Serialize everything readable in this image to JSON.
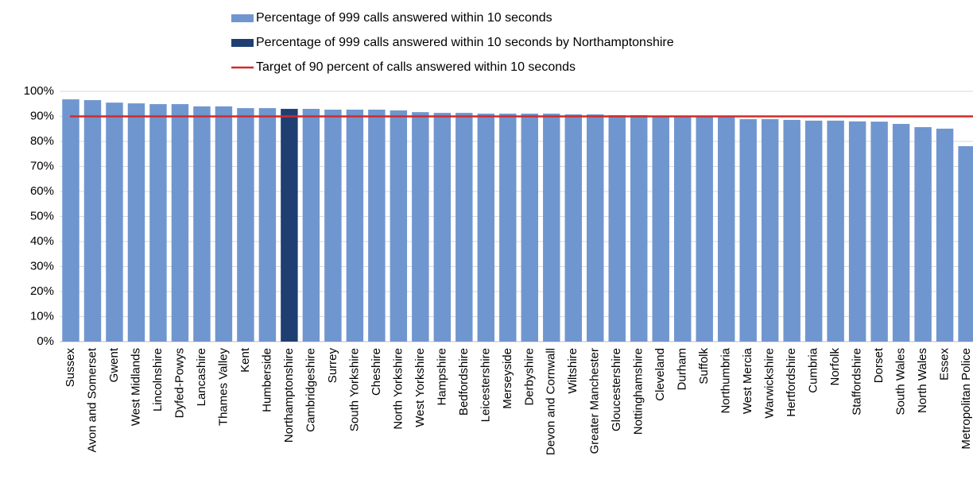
{
  "chart_data": {
    "type": "bar",
    "categories": [
      "Sussex",
      "Avon and Somerset",
      "Gwent",
      "West Midlands",
      "Lincolnshire",
      "Dyfed-Powys",
      "Lancashire",
      "Thames Valley",
      "Kent",
      "Humberside",
      "Northamptonshire",
      "Cambridgeshire",
      "Surrey",
      "South Yorkshire",
      "Cheshire",
      "North Yorkshire",
      "West Yorkshire",
      "Hampshire",
      "Bedfordshire",
      "Leicestershire",
      "Merseyside",
      "Derbyshire",
      "Devon and Cornwall",
      "Wiltshire",
      "Greater Manchester",
      "Gloucestershire",
      "Nottinghamshire",
      "Cleveland",
      "Durham",
      "Suffolk",
      "Northumbria",
      "West Mercia",
      "Warwickshire",
      "Hertfordshire",
      "Cumbria",
      "Norfolk",
      "Staffordshire",
      "Dorset",
      "South Wales",
      "North Wales",
      "Essex",
      "Metropolitan Police"
    ],
    "series": [
      {
        "name": "Percentage of 999 calls answered within 10 seconds",
        "color": "#7096cf",
        "values": [
          96.8,
          96.5,
          95.5,
          95.2,
          94.9,
          94.9,
          94.0,
          94.0,
          93.3,
          93.3,
          null,
          93.0,
          92.7,
          92.7,
          92.7,
          92.4,
          91.7,
          91.4,
          91.4,
          91.1,
          91.1,
          91.1,
          91.1,
          90.8,
          90.8,
          90.5,
          90.5,
          90.2,
          90.2,
          90.2,
          90.2,
          88.9,
          88.9,
          88.6,
          88.3,
          88.3,
          88.0,
          87.9,
          87.0,
          85.7,
          85.1,
          78.1
        ]
      },
      {
        "name": "Percentage of 999 calls answered within 10 seconds by Northamptonshire",
        "color": "#1f3f73",
        "values": [
          null,
          null,
          null,
          null,
          null,
          null,
          null,
          null,
          null,
          null,
          93.0,
          null,
          null,
          null,
          null,
          null,
          null,
          null,
          null,
          null,
          null,
          null,
          null,
          null,
          null,
          null,
          null,
          null,
          null,
          null,
          null,
          null,
          null,
          null,
          null,
          null,
          null,
          null,
          null,
          null,
          null,
          null
        ]
      }
    ],
    "target": {
      "name": "Target of 90 percent of calls answered within 10 seconds",
      "color": "#d42a2a",
      "value": 90
    },
    "ylim": [
      0,
      100
    ],
    "yticks": [
      {
        "value": 0,
        "label": "0%"
      },
      {
        "value": 10,
        "label": "10%"
      },
      {
        "value": 20,
        "label": "20%"
      },
      {
        "value": 30,
        "label": "30%"
      },
      {
        "value": 40,
        "label": "40%"
      },
      {
        "value": 50,
        "label": "50%"
      },
      {
        "value": 60,
        "label": "60%"
      },
      {
        "value": 70,
        "label": "70%"
      },
      {
        "value": 80,
        "label": "80%"
      },
      {
        "value": 90,
        "label": "90%"
      },
      {
        "value": 100,
        "label": "100%"
      }
    ],
    "grid": true
  }
}
